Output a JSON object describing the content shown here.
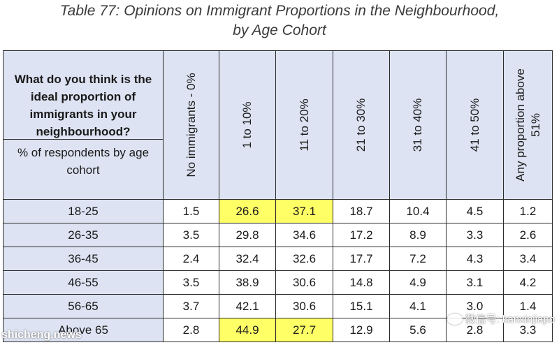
{
  "title": {
    "line1": "Table 77: Opinions on Immigrant Proportions in the Neighbourhood,",
    "line2": "by Age Cohort"
  },
  "table": {
    "question": "What do you think is the ideal proportion of immigrants in your neighbourhood?",
    "subheader": "% of respondents by age cohort",
    "columns": [
      "No immigrants - 0%",
      "1 to 10%",
      "11 to 20%",
      "21 to 30%",
      "31 to 40%",
      "41 to 50%",
      "Any proportion above 51%"
    ],
    "rows": [
      {
        "label": "18-25",
        "values": [
          "1.5",
          "26.6",
          "37.1",
          "18.7",
          "10.4",
          "4.5",
          "1.2"
        ],
        "highlight": [
          1,
          2
        ]
      },
      {
        "label": "26-35",
        "values": [
          "3.5",
          "29.8",
          "34.6",
          "17.2",
          "8.9",
          "3.3",
          "2.6"
        ],
        "highlight": []
      },
      {
        "label": "36-45",
        "values": [
          "2.4",
          "32.4",
          "32.6",
          "17.7",
          "7.2",
          "4.3",
          "3.4"
        ],
        "highlight": []
      },
      {
        "label": "46-55",
        "values": [
          "3.5",
          "38.9",
          "30.6",
          "14.8",
          "4.9",
          "3.1",
          "4.2"
        ],
        "highlight": []
      },
      {
        "label": "56-65",
        "values": [
          "3.7",
          "42.1",
          "30.6",
          "15.1",
          "4.1",
          "3.0",
          "1.4"
        ],
        "highlight": []
      },
      {
        "label": "Above 65",
        "values": [
          "2.8",
          "44.9",
          "27.7",
          "12.9",
          "5.6",
          "2.8",
          "3.3"
        ],
        "highlight": [
          1,
          2
        ]
      }
    ],
    "highlight_color": "#ffff66",
    "header_color": "#dde3f2"
  },
  "watermarks": {
    "left": "shicheng.news",
    "right": "微信号: kanxinjiapo"
  }
}
